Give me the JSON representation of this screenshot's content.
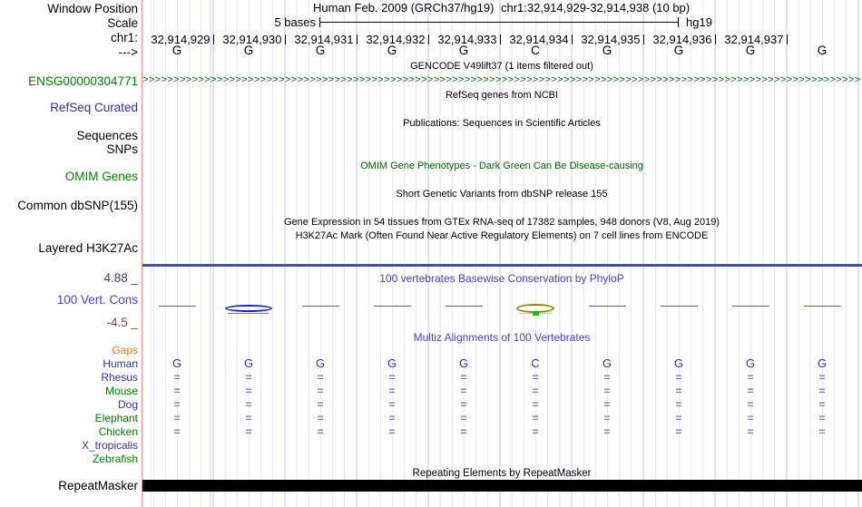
{
  "window": {
    "assembly_title": "Human Feb. 2009 (GRCh37/hg19)",
    "position": "chr1:32,914,929-32,914,938 (10 bp)"
  },
  "scale": {
    "label": "5 bases",
    "assembly": "hg19"
  },
  "left_labels": {
    "window_position": "Window Position",
    "scale": "Scale",
    "chromosome": "chr1:",
    "strand_arrow": "--->",
    "gene_id": "ENSG00000304771",
    "refseq_curated": "RefSeq Curated",
    "sequences": "Sequences",
    "snps": "SNPs",
    "omim_genes": "OMIM Genes",
    "common_dbsnp": "Common dbSNP(155)",
    "layered_h3k27ac": "Layered H3K27Ac",
    "conservation_max": "4.88 _",
    "conservation_name": "100 Vert. Cons",
    "conservation_min": "-4.5 _",
    "repeatmasker": "RepeatMasker"
  },
  "ruler": {
    "numbers": [
      "32,914,929",
      "32,914,930",
      "32,914,931",
      "32,914,932",
      "32,914,933",
      "32,914,934",
      "32,914,935",
      "32,914,936",
      "32,914,937"
    ]
  },
  "sequence": {
    "bases": [
      "G",
      "G",
      "G",
      "G",
      "G",
      "C",
      "G",
      "G",
      "G",
      "G"
    ]
  },
  "gene_track": {
    "arrow_char": ">"
  },
  "track_titles": {
    "gencode": "GENCODE V49lift37 (1 items filtered out)",
    "refseq": "RefSeq genes from NCBI",
    "publications": "Publications: Sequences in Scientific Articles",
    "omim": "OMIM Gene Phenotypes - Dark Green Can Be Disease-causing",
    "dbsnp": "Short Genetic Variants from dbSNP release 155",
    "gtex": "Gene Expression in 54 tissues from GTEx RNA-seq of 17382 samples, 948 donors (V8, Aug 2019)",
    "h3k27ac": "H3K27Ac Mark (Often Found Near Active Regulatory Elements) on 7 cell lines from ENCODE",
    "phylop": "100 vertebrates Basewise Conservation by PhyloP",
    "multiz": "Multiz Alignments of 100 Vertebrates",
    "repeatmasker": "Repeating Elements by RepeatMasker"
  },
  "conservation": {
    "marks": [
      "bar",
      "peak_blue",
      "bar",
      "bar",
      "bar",
      "peak_olive",
      "bar",
      "bar",
      "bar",
      "bar"
    ]
  },
  "alignment": {
    "match_symbol": "=",
    "species": [
      {
        "name": "Gaps",
        "color": "#e07d1e",
        "row": "empty"
      },
      {
        "name": "Human",
        "color": "#32329e",
        "row": "bases"
      },
      {
        "name": "Rhesus",
        "color": "#32329e",
        "row": "match"
      },
      {
        "name": "Mouse",
        "color": "#008000",
        "row": "match"
      },
      {
        "name": "Dog",
        "color": "#32329e",
        "row": "match"
      },
      {
        "name": "Elephant",
        "color": "#008000",
        "row": "match"
      },
      {
        "name": "Chicken",
        "color": "#008000",
        "row": "match"
      },
      {
        "name": "X_tropicalis",
        "color": "#32329e",
        "row": "empty"
      },
      {
        "name": "Zebrafish",
        "color": "#008000",
        "row": "empty"
      }
    ]
  },
  "colors": {
    "green_label": "#008000",
    "navy_label": "#32329e",
    "title_blue": "#4343c8",
    "omim_green": "#006400",
    "cons_max": "#3b3b77",
    "cons_min": "#8b4040",
    "gaps_orange": "#e07d1e",
    "gene_arrow_green": "#006b00",
    "h3k27ac_line": "#4646cc",
    "repeat_bar": "#000000",
    "cons_bar": "#5a5ad0",
    "cons_peak_blue": "#2323cc",
    "cons_peak_red": "#cc5555",
    "cons_peak_olive": "#8b8b00",
    "cons_peak_green": "#00cc00",
    "match": "#7e7ec2",
    "grid_minor": "#e2e2f4",
    "grid_major": "#c9c9e8",
    "guide_pink": "#ff8f8f"
  }
}
